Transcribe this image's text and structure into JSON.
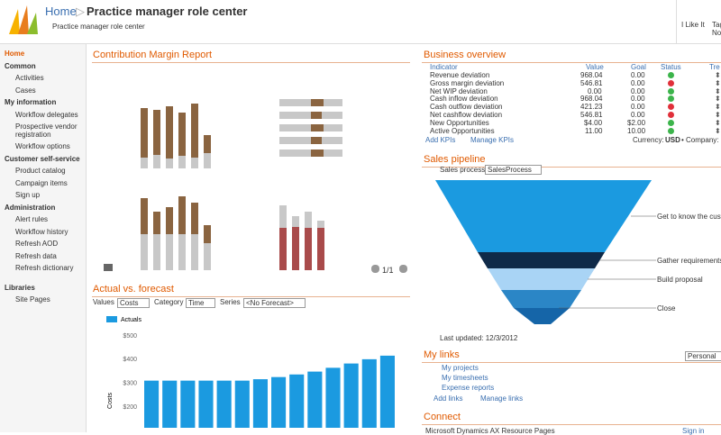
{
  "header": {
    "breadcrumb": "Home",
    "title": "Practice manager role center",
    "subtitle": "Practice manager role center",
    "actions": [
      "I Like It",
      "Tags &",
      "Notes"
    ]
  },
  "nav": [
    {
      "label": "Home",
      "kind": "current"
    },
    {
      "label": "Common",
      "kind": "group"
    },
    {
      "label": "Activities",
      "kind": "item"
    },
    {
      "label": "Cases",
      "kind": "item"
    },
    {
      "label": "My information",
      "kind": "group"
    },
    {
      "label": "Workflow delegates",
      "kind": "item"
    },
    {
      "label": "Prospective vendor registration",
      "kind": "item"
    },
    {
      "label": "Workflow options",
      "kind": "item"
    },
    {
      "label": "Customer self-service",
      "kind": "group"
    },
    {
      "label": "Product catalog",
      "kind": "item"
    },
    {
      "label": "Campaign items",
      "kind": "item"
    },
    {
      "label": "Sign up",
      "kind": "item"
    },
    {
      "label": "Administration",
      "kind": "group"
    },
    {
      "label": "Alert rules",
      "kind": "item"
    },
    {
      "label": "Workflow history",
      "kind": "item"
    },
    {
      "label": "Refresh AOD",
      "kind": "item"
    },
    {
      "label": "Refresh data",
      "kind": "item"
    },
    {
      "label": "Refresh dictionary",
      "kind": "item"
    },
    {
      "label": "Libraries",
      "kind": "group"
    },
    {
      "label": "Site Pages",
      "kind": "item"
    }
  ],
  "contribution": {
    "title": "Contribution Margin Report",
    "pager": "1/1"
  },
  "forecast": {
    "title": "Actual vs. forecast",
    "controls": [
      {
        "label": "Values",
        "value": "Costs"
      },
      {
        "label": "Category",
        "value": "Time"
      },
      {
        "label": "Series",
        "value": "<No Forecast>"
      }
    ],
    "chart_data": {
      "type": "bar",
      "y_label": "Costs",
      "series": [
        {
          "name": "Actuals",
          "color": "#1b9ae0",
          "values": [
            312,
            312,
            312,
            312,
            312,
            312,
            318,
            327,
            338,
            350,
            366,
            384,
            402,
            417
          ]
        }
      ],
      "ylim": [
        0,
        500
      ],
      "yticks": [
        {
          "value": 200,
          "label": "$200"
        },
        {
          "value": 300,
          "label": "$300"
        },
        {
          "value": 400,
          "label": "$400"
        },
        {
          "value": 500,
          "label": "$500"
        }
      ],
      "grid": false
    }
  },
  "business": {
    "title": "Business overview",
    "columns": [
      "Indicator",
      "Value",
      "Goal",
      "Status",
      "Tre"
    ],
    "rows": [
      [
        "Revenue deviation",
        "968.04",
        "0.00",
        "green"
      ],
      [
        "Gross margin deviation",
        "546.81",
        "0.00",
        "red"
      ],
      [
        "Net WIP deviation",
        "0.00",
        "0.00",
        "green"
      ],
      [
        "Cash inflow deviation",
        "968.04",
        "0.00",
        "green"
      ],
      [
        "Cash outflow deviation",
        "421.23",
        "0.00",
        "red"
      ],
      [
        "Net cashflow deviation",
        "546.81",
        "0.00",
        "red"
      ],
      [
        "New Opportunities",
        "$4.00",
        "$2.00",
        "green"
      ],
      [
        "Active Opportunities",
        "11.00",
        "10.00",
        "green"
      ]
    ],
    "links": [
      "Add KPIs",
      "Manage KPIs"
    ],
    "currency_label": "Currency:",
    "currency": "USD",
    "company_label": "• Company:"
  },
  "pipeline": {
    "title": "Sales pipeline",
    "process_label": "Sales process:",
    "process": "SalesProcess",
    "stages": [
      "Get to know the customer",
      "Gather requirements",
      "Build proposal",
      "Close"
    ],
    "updated": "Last updated: 12/3/2012"
  },
  "links": {
    "title": "My links",
    "scope": "Personal",
    "items": [
      "My projects",
      "My timesheets",
      "Expense reports"
    ],
    "actions": [
      "Add links",
      "Manage links"
    ]
  },
  "connect": {
    "title": "Connect",
    "item": "Microsoft Dynamics AX Resource Pages",
    "sign_in": "Sign in"
  }
}
